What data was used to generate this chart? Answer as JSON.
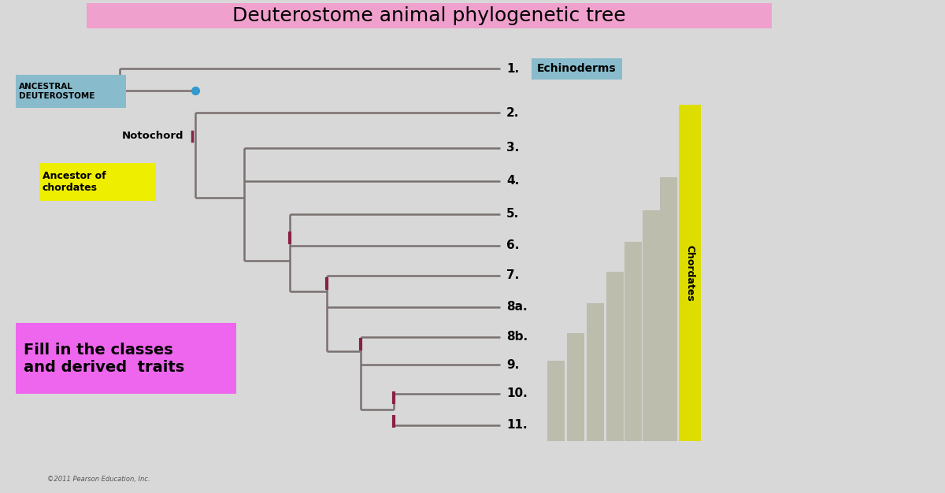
{
  "title": "Deuterostome animal phylogenetic tree",
  "title_bg": "#f0a0cc",
  "background_color": "#d8d8d8",
  "tree_color": "#7a7070",
  "tick_color": "#882244",
  "node_color": "#3399cc",
  "labels": [
    "1.",
    "2.",
    "3.",
    "4.",
    "5.",
    "6.",
    "7.",
    "8a.",
    "8b.",
    "9.",
    "10.",
    "11."
  ],
  "label1_text": "Echinoderms",
  "label1_bg": "#88bbcc",
  "ancestral_text": "ANCESTRAL\nDEUTEROSTOME",
  "ancestral_bg": "#88bbcc",
  "notochord_text": "Notochord",
  "ancestor_text": "Ancestor of\nchordates",
  "ancestor_bg": "#eeee00",
  "fill_text": "Fill in the classes\nand derived  traits",
  "fill_bg": "#ee66ee",
  "chordates_text": "Chordates",
  "chordates_bg": "#dddd00",
  "copyright_text": "©2011 Pearson Education, Inc.",
  "bar_color": "#bbbbaa",
  "bar_color2": "#aaaaaa"
}
